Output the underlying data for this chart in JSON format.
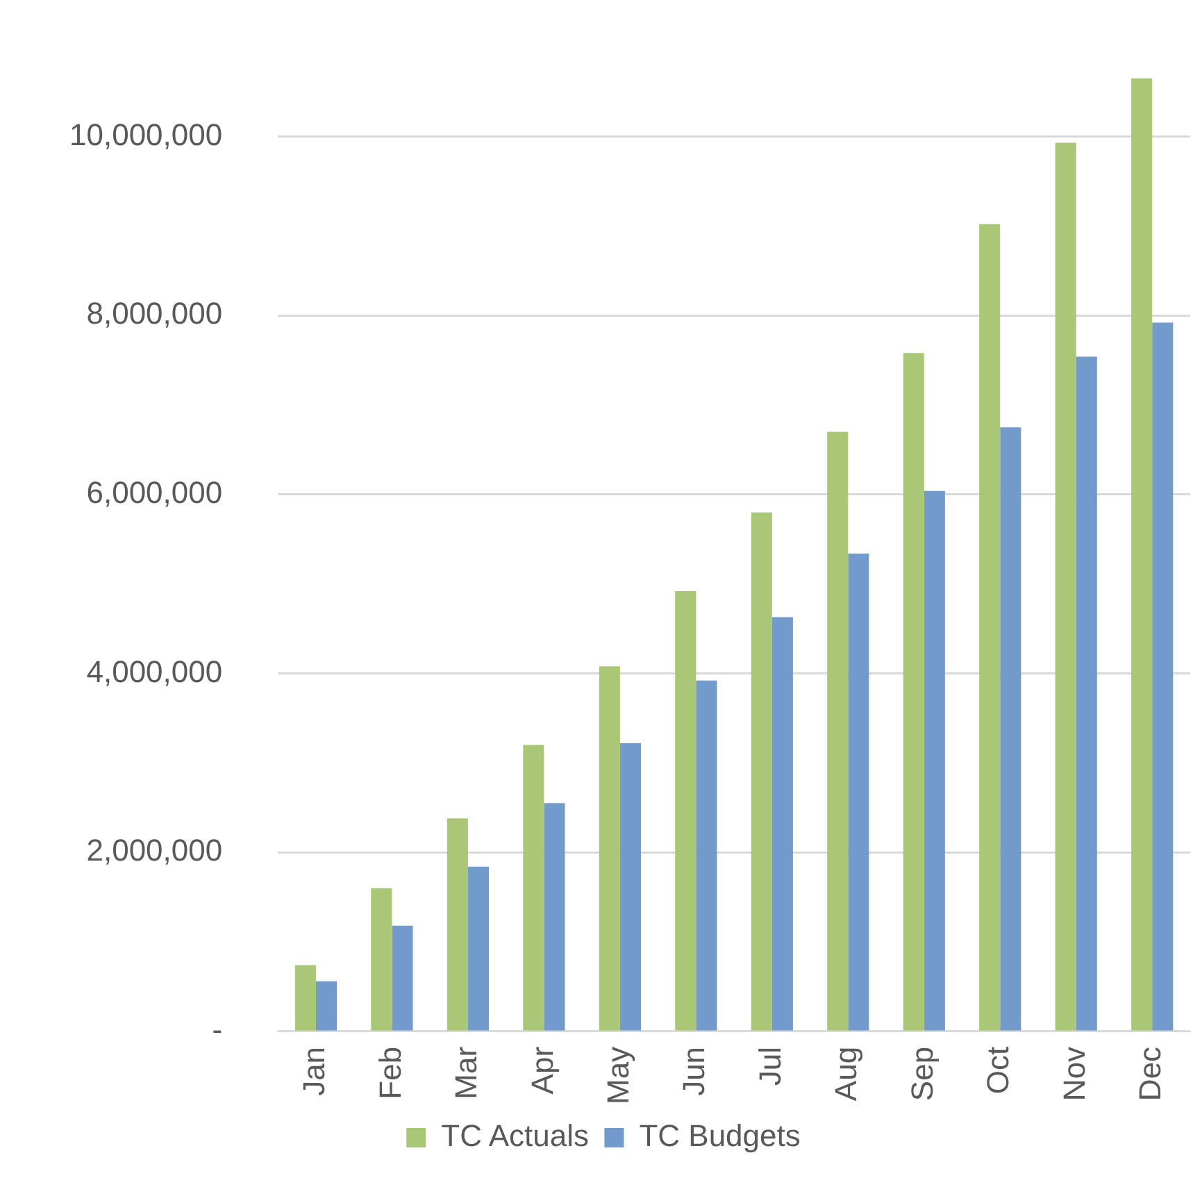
{
  "chart_data": {
    "type": "bar",
    "categories": [
      "Jan",
      "Feb",
      "Mar",
      "Apr",
      "May",
      "Jun",
      "Jul",
      "Aug",
      "Sep",
      "Oct",
      "Nov",
      "Dec"
    ],
    "series": [
      {
        "name": "TC Actuals",
        "color": "#a9c777",
        "values": [
          740000,
          1600000,
          2380000,
          3200000,
          4080000,
          4920000,
          5800000,
          6700000,
          7580000,
          9020000,
          9930000,
          10650000
        ]
      },
      {
        "name": "TC Budgets",
        "color": "#729acb",
        "values": [
          560000,
          1180000,
          1840000,
          2550000,
          3220000,
          3920000,
          4630000,
          5340000,
          6040000,
          6750000,
          7540000,
          7920000
        ]
      }
    ],
    "ylim": [
      0,
      10700000
    ],
    "yticks": [
      {
        "value": 0,
        "label": "-"
      },
      {
        "value": 2000000,
        "label": "2,000,000"
      },
      {
        "value": 4000000,
        "label": "4,000,000"
      },
      {
        "value": 6000000,
        "label": "6,000,000"
      },
      {
        "value": 8000000,
        "label": "8,000,000"
      },
      {
        "value": 10000000,
        "label": "10,000,000"
      }
    ],
    "grid": "y",
    "legend": "bottom"
  }
}
